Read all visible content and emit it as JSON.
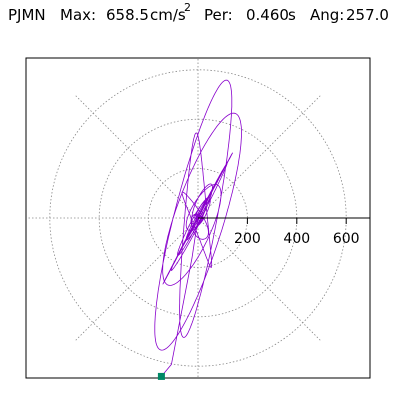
{
  "title": {
    "station": "PJMN",
    "max_label": "Max:",
    "max_value": "658.5",
    "max_unit": "cm/s",
    "max_unit_exponent": "2",
    "period_label": "Per:",
    "period_value": "0.460",
    "period_unit": "s",
    "angle_label": "Ang:",
    "angle_value": "257.0"
  },
  "chart_data": {
    "type": "polar-orbit",
    "title": "PJMN  Max: 658.5 cm/s2  Per: 0.460 s  Ang: 257.0",
    "radial_ticks": [
      200,
      400,
      600
    ],
    "radial_tick_labels": [
      "200",
      "400",
      "600"
    ],
    "radial_range": [
      0,
      700
    ],
    "angular_gridlines_deg": [
      0,
      45,
      90,
      135,
      180,
      225,
      270,
      315
    ],
    "grid": true,
    "peak_value": 658.5,
    "peak_angle_deg": 257.0,
    "trace_color": "#8800cc",
    "marker_color": "#008866",
    "grid_color": "#888888"
  }
}
